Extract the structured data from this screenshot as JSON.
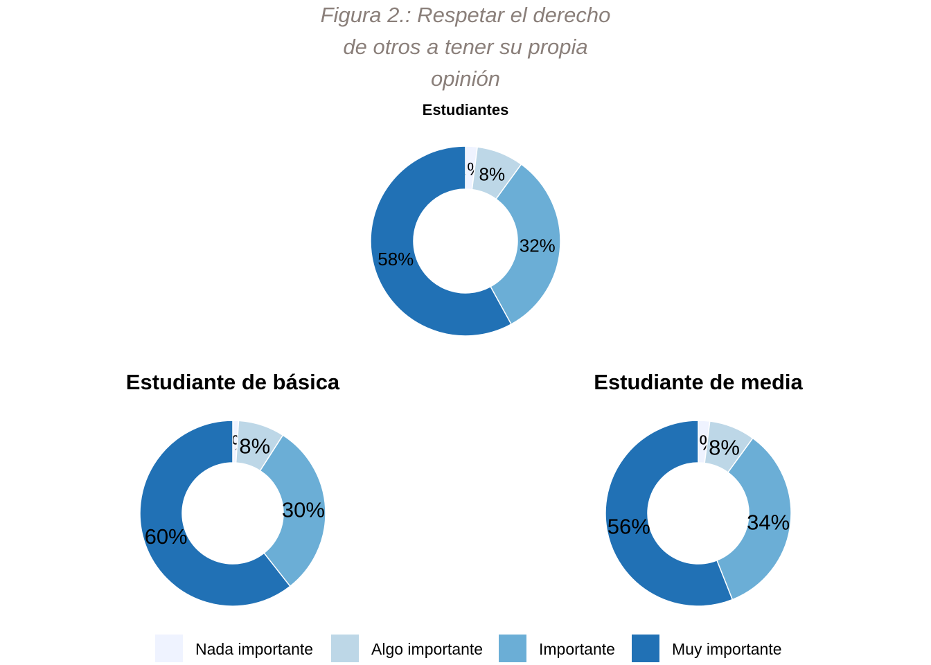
{
  "title_lines": [
    "Figura 2.: Respetar el derecho",
    "de otros a tener su propia",
    "opinión"
  ],
  "legend": {
    "position": "bottom",
    "items": [
      "Nada importante",
      "Algo importante",
      "Importante",
      "Muy importante"
    ],
    "colors": [
      "#eff3ff",
      "#bdd7e7",
      "#6baed6",
      "#2171b5"
    ]
  },
  "chart_data": [
    {
      "type": "pie",
      "style": "donut",
      "title": "Estudiantes",
      "categories": [
        "Nada importante",
        "Algo importante",
        "Importante",
        "Muy importante"
      ],
      "values": [
        2,
        8,
        32,
        58
      ],
      "labels": [
        "2%",
        "8%",
        "32%",
        "58%"
      ]
    },
    {
      "type": "pie",
      "style": "donut",
      "title": "Estudiante de básica",
      "categories": [
        "Nada importante",
        "Algo importante",
        "Importante",
        "Muy importante"
      ],
      "values": [
        1,
        8,
        30,
        60
      ],
      "labels": [
        "1%",
        "8%",
        "30%",
        "60%"
      ]
    },
    {
      "type": "pie",
      "style": "donut",
      "title": "Estudiante de media",
      "categories": [
        "Nada importante",
        "Algo importante",
        "Importante",
        "Muy importante"
      ],
      "values": [
        2,
        8,
        34,
        56
      ],
      "labels": [
        "2%",
        "8%",
        "34%",
        "56%"
      ]
    }
  ]
}
